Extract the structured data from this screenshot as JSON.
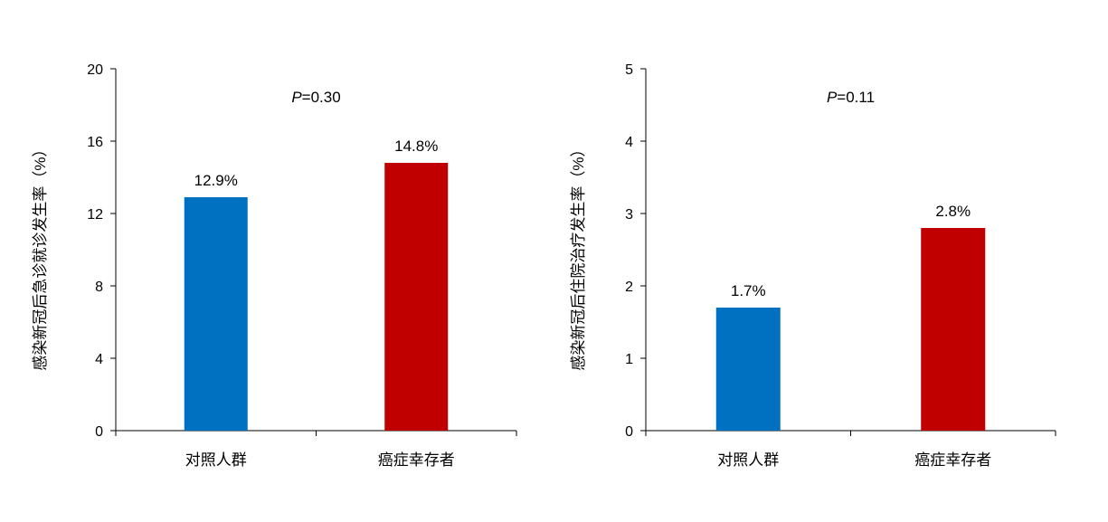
{
  "chart_data": [
    {
      "type": "bar",
      "categories": [
        "对照人群",
        "癌症幸存者"
      ],
      "values": [
        12.9,
        14.8
      ],
      "value_labels": [
        "12.9%",
        "14.8%"
      ],
      "colors": [
        "#0070C0",
        "#C00000"
      ],
      "ylabel": "感染新冠后急诊就诊发生率（%）",
      "ylim": [
        0,
        20
      ],
      "yticks": [
        0,
        4,
        8,
        12,
        16,
        20
      ],
      "annotation": {
        "italic": "P",
        "rest": "=0.30"
      },
      "grid": false,
      "legend": "none"
    },
    {
      "type": "bar",
      "categories": [
        "对照人群",
        "癌症幸存者"
      ],
      "values": [
        1.7,
        2.8
      ],
      "value_labels": [
        "1.7%",
        "2.8%"
      ],
      "colors": [
        "#0070C0",
        "#C00000"
      ],
      "ylabel": "感染新冠后住院治疗发生率（%）",
      "ylim": [
        0,
        5
      ],
      "yticks": [
        0,
        1,
        2,
        3,
        4,
        5
      ],
      "annotation": {
        "italic": "P",
        "rest": "=0.11"
      },
      "grid": false,
      "legend": "none"
    }
  ]
}
